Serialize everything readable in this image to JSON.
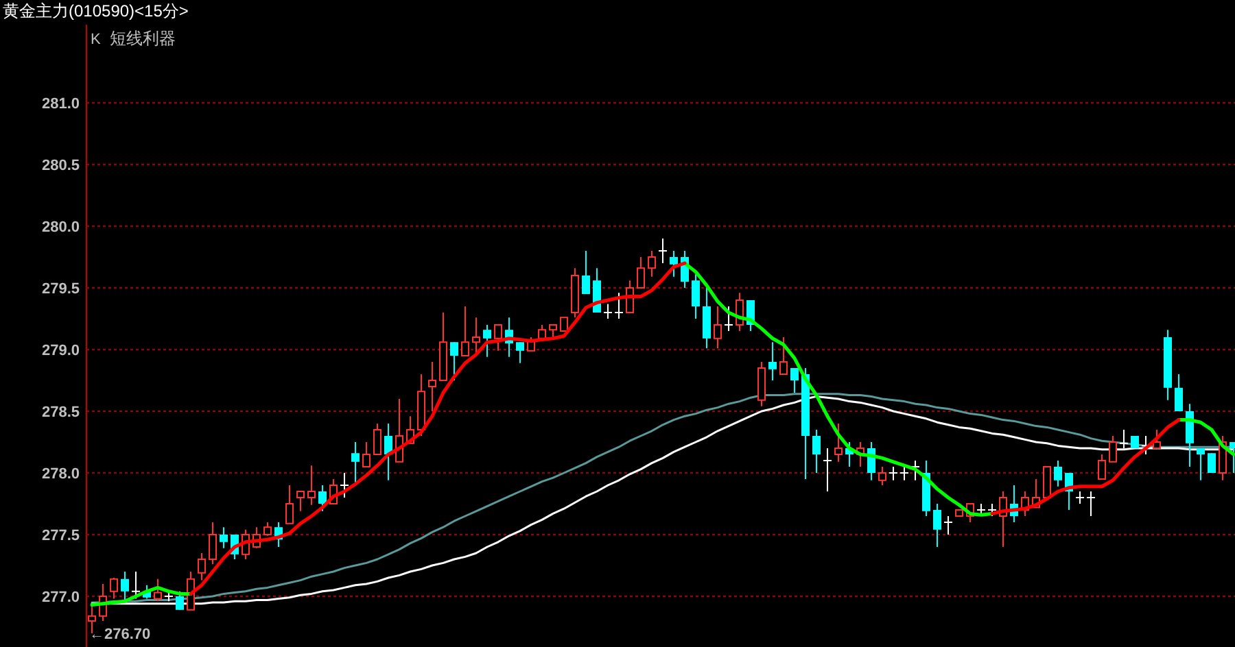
{
  "chart_data": {
    "type": "candlestick",
    "title": "黄金主力(010590)<15分>",
    "subtitle": "短线利器",
    "annotations": [
      "K",
      "←276.70"
    ],
    "categories": [
      null,
      null,
      null,
      null,
      null,
      null,
      null,
      null,
      null,
      null,
      null,
      null,
      null,
      null,
      null,
      null,
      null,
      null,
      null,
      null,
      null,
      null,
      null,
      null,
      null,
      null,
      null,
      null,
      null,
      null,
      null,
      null,
      null,
      null,
      null,
      null,
      null,
      null,
      null,
      null,
      null,
      null,
      null,
      null,
      null,
      null,
      null,
      null,
      null,
      null,
      null,
      null,
      null,
      null,
      null,
      null,
      null,
      null,
      null,
      null,
      null,
      null,
      null,
      null,
      null,
      null,
      null,
      null,
      null,
      null,
      null,
      null,
      null,
      null,
      null,
      null,
      null,
      null,
      null,
      null,
      null,
      null,
      null,
      null,
      null,
      null,
      null,
      null,
      null,
      null,
      null,
      null,
      null,
      null,
      null,
      null,
      null,
      null,
      null,
      null,
      null,
      null,
      null,
      null,
      null
    ],
    "ohlc": [
      [
        276.8,
        276.92,
        276.7,
        276.84
      ],
      [
        276.84,
        277.1,
        276.8,
        277.0
      ],
      [
        277.04,
        277.15,
        276.98,
        277.14
      ],
      [
        277.14,
        277.2,
        276.96,
        277.04
      ],
      [
        277.04,
        277.2,
        276.98,
        277.04
      ],
      [
        277.04,
        277.09,
        276.98,
        276.99
      ],
      [
        276.98,
        277.14,
        276.96,
        277.03
      ],
      [
        277.0,
        277.04,
        276.96,
        277.0
      ],
      [
        277.0,
        277.04,
        276.89,
        276.89
      ],
      [
        276.89,
        277.2,
        276.89,
        277.14
      ],
      [
        277.19,
        277.35,
        277.13,
        277.3
      ],
      [
        277.3,
        277.6,
        277.26,
        277.5
      ],
      [
        277.5,
        277.56,
        277.39,
        277.44
      ],
      [
        277.5,
        277.5,
        277.3,
        277.34
      ],
      [
        277.34,
        277.54,
        277.3,
        277.5
      ],
      [
        277.4,
        277.56,
        277.39,
        277.5
      ],
      [
        277.5,
        277.6,
        277.49,
        277.56
      ],
      [
        277.56,
        277.6,
        277.4,
        277.46
      ],
      [
        277.59,
        277.9,
        277.59,
        277.75
      ],
      [
        277.8,
        277.85,
        277.69,
        277.85
      ],
      [
        277.8,
        278.06,
        277.74,
        277.85
      ],
      [
        277.85,
        277.9,
        277.69,
        277.75
      ],
      [
        277.75,
        277.95,
        277.75,
        277.9
      ],
      [
        277.9,
        278.0,
        277.8,
        277.9
      ],
      [
        278.16,
        278.25,
        277.91,
        278.09
      ],
      [
        278.05,
        278.25,
        278.05,
        278.15
      ],
      [
        278.15,
        278.4,
        278.15,
        278.35
      ],
      [
        278.3,
        278.4,
        277.94,
        278.15
      ],
      [
        278.09,
        278.6,
        278.09,
        278.3
      ],
      [
        278.24,
        278.46,
        278.24,
        278.35
      ],
      [
        278.35,
        278.8,
        278.3,
        278.66
      ],
      [
        278.7,
        278.9,
        278.5,
        278.75
      ],
      [
        278.75,
        279.3,
        278.75,
        279.06
      ],
      [
        279.06,
        279.06,
        278.75,
        278.95
      ],
      [
        278.95,
        279.35,
        278.95,
        279.06
      ],
      [
        279.06,
        279.26,
        278.95,
        279.1
      ],
      [
        279.16,
        279.2,
        278.94,
        279.09
      ],
      [
        279.09,
        279.2,
        278.99,
        279.2
      ],
      [
        279.16,
        279.26,
        278.94,
        279.05
      ],
      [
        279.06,
        279.06,
        278.89,
        278.99
      ],
      [
        278.99,
        279.1,
        278.99,
        279.07
      ],
      [
        279.09,
        279.2,
        279.09,
        279.16
      ],
      [
        279.16,
        279.2,
        279.1,
        279.2
      ],
      [
        279.15,
        279.26,
        279.15,
        279.26
      ],
      [
        279.3,
        279.66,
        279.26,
        279.6
      ],
      [
        279.6,
        279.8,
        279.45,
        279.45
      ],
      [
        279.56,
        279.66,
        279.3,
        279.3
      ],
      [
        279.3,
        279.37,
        279.25,
        279.3
      ],
      [
        279.3,
        279.46,
        279.25,
        279.3
      ],
      [
        279.3,
        279.56,
        279.3,
        279.5
      ],
      [
        279.5,
        279.75,
        279.5,
        279.66
      ],
      [
        279.66,
        279.8,
        279.59,
        279.75
      ],
      [
        279.8,
        279.9,
        279.7,
        279.8
      ],
      [
        279.75,
        279.8,
        279.59,
        279.69
      ],
      [
        279.75,
        279.8,
        279.5,
        279.55
      ],
      [
        279.56,
        279.61,
        279.25,
        279.35
      ],
      [
        279.35,
        279.5,
        279.01,
        279.09
      ],
      [
        279.09,
        279.35,
        279.01,
        279.2
      ],
      [
        279.2,
        279.35,
        279.15,
        279.2
      ],
      [
        279.2,
        279.46,
        279.15,
        279.4
      ],
      [
        279.4,
        279.4,
        279.15,
        279.2
      ],
      [
        278.59,
        278.9,
        278.54,
        278.85
      ],
      [
        278.9,
        279.06,
        278.75,
        278.84
      ],
      [
        278.8,
        279.1,
        278.8,
        278.9
      ],
      [
        278.85,
        278.85,
        278.65,
        278.75
      ],
      [
        278.8,
        278.85,
        277.95,
        278.3
      ],
      [
        278.3,
        278.35,
        278.0,
        278.15
      ],
      [
        278.1,
        278.2,
        277.85,
        278.1
      ],
      [
        278.15,
        278.4,
        278.09,
        278.2
      ],
      [
        278.2,
        278.25,
        278.05,
        278.15
      ],
      [
        278.15,
        278.25,
        278.05,
        278.2
      ],
      [
        278.2,
        278.25,
        277.94,
        278.0
      ],
      [
        277.94,
        278.05,
        277.9,
        278.0
      ],
      [
        278.0,
        278.05,
        277.94,
        278.0
      ],
      [
        278.0,
        278.05,
        277.94,
        278.0
      ],
      [
        278.05,
        278.1,
        277.94,
        278.05
      ],
      [
        278.0,
        278.1,
        277.65,
        277.69
      ],
      [
        277.7,
        277.75,
        277.4,
        277.54
      ],
      [
        277.6,
        277.65,
        277.5,
        277.6
      ],
      [
        277.65,
        277.7,
        277.65,
        277.7
      ],
      [
        277.65,
        277.75,
        277.6,
        277.75
      ],
      [
        277.7,
        277.75,
        277.65,
        277.7
      ],
      [
        277.7,
        277.75,
        277.65,
        277.7
      ],
      [
        277.65,
        277.85,
        277.4,
        277.8
      ],
      [
        277.75,
        277.9,
        277.6,
        277.65
      ],
      [
        277.7,
        277.85,
        277.65,
        277.8
      ],
      [
        277.72,
        277.95,
        277.72,
        277.8
      ],
      [
        277.8,
        278.05,
        277.8,
        278.05
      ],
      [
        278.05,
        278.1,
        277.89,
        277.94
      ],
      [
        278.0,
        278.0,
        277.7,
        277.85
      ],
      [
        277.8,
        277.85,
        277.75,
        277.8
      ],
      [
        277.8,
        277.85,
        277.65,
        277.8
      ],
      [
        277.95,
        278.15,
        277.95,
        278.1
      ],
      [
        278.09,
        278.3,
        278.09,
        278.25
      ],
      [
        278.24,
        278.35,
        278.2,
        278.24
      ],
      [
        278.3,
        278.3,
        278.2,
        278.2
      ],
      [
        278.22,
        278.3,
        278.15,
        278.22
      ],
      [
        278.2,
        278.35,
        278.2,
        278.25
      ],
      [
        279.1,
        279.16,
        278.59,
        278.69
      ],
      [
        278.69,
        278.8,
        278.5,
        278.5
      ],
      [
        278.5,
        278.56,
        278.05,
        278.24
      ],
      [
        278.2,
        278.2,
        277.94,
        278.15
      ],
      [
        278.16,
        278.16,
        278.0,
        278.0
      ],
      [
        278.0,
        278.3,
        277.94,
        278.25
      ],
      [
        278.25,
        278.25,
        278.0,
        278.2
      ]
    ],
    "series": [
      {
        "type": "line",
        "color": "#5a9a9a",
        "values": [
          276.95,
          276.95,
          276.96,
          276.96,
          276.96,
          276.97,
          276.97,
          276.97,
          276.98,
          276.98,
          276.99,
          277.0,
          277.02,
          277.03,
          277.04,
          277.06,
          277.07,
          277.09,
          277.11,
          277.13,
          277.16,
          277.18,
          277.2,
          277.23,
          277.25,
          277.27,
          277.3,
          277.34,
          277.38,
          277.43,
          277.47,
          277.52,
          277.56,
          277.61,
          277.65,
          277.69,
          277.73,
          277.77,
          277.81,
          277.85,
          277.89,
          277.93,
          277.96,
          278.0,
          278.04,
          278.08,
          278.13,
          278.17,
          278.21,
          278.26,
          278.3,
          278.34,
          278.39,
          278.43,
          278.46,
          278.48,
          278.51,
          278.53,
          278.56,
          278.58,
          278.61,
          278.63,
          278.63,
          278.63,
          278.64,
          278.64,
          278.64,
          278.64,
          278.64,
          278.63,
          278.63,
          278.62,
          278.6,
          278.59,
          278.58,
          278.56,
          278.55,
          278.53,
          278.52,
          278.5,
          278.48,
          278.47,
          278.45,
          278.43,
          278.42,
          278.4,
          278.38,
          278.37,
          278.35,
          278.33,
          278.31,
          278.28,
          278.26,
          278.25,
          278.24,
          278.23,
          278.22,
          278.21,
          278.21,
          278.21,
          278.21,
          278.21,
          278.21,
          278.21,
          278.21
        ]
      },
      {
        "type": "line",
        "color": "#ffffff",
        "values": [
          276.94,
          276.94,
          276.94,
          276.94,
          276.94,
          276.94,
          276.94,
          276.94,
          276.94,
          276.94,
          276.94,
          276.95,
          276.95,
          276.96,
          276.96,
          276.97,
          276.97,
          276.98,
          276.99,
          277.01,
          277.02,
          277.04,
          277.05,
          277.07,
          277.09,
          277.1,
          277.12,
          277.15,
          277.17,
          277.2,
          277.22,
          277.25,
          277.27,
          277.3,
          277.32,
          277.35,
          277.4,
          277.44,
          277.49,
          277.53,
          277.58,
          277.62,
          277.67,
          277.71,
          277.76,
          277.81,
          277.85,
          277.9,
          277.94,
          277.99,
          278.03,
          278.08,
          278.12,
          278.17,
          278.21,
          278.25,
          278.29,
          278.34,
          278.38,
          278.42,
          278.46,
          278.5,
          278.52,
          278.55,
          278.57,
          278.6,
          278.62,
          278.61,
          278.6,
          278.58,
          278.57,
          278.55,
          278.53,
          278.5,
          278.48,
          278.46,
          278.44,
          278.41,
          278.39,
          278.37,
          278.36,
          278.34,
          278.32,
          278.31,
          278.29,
          278.27,
          278.25,
          278.24,
          278.22,
          278.21,
          278.2,
          278.2,
          278.19,
          278.19,
          278.19,
          278.2,
          278.2,
          278.2,
          278.2,
          278.2,
          278.19,
          278.19,
          278.19,
          278.19,
          278.19
        ]
      },
      {
        "type": "line",
        "color": "#00ff00",
        "values": [
          276.93,
          276.94,
          276.95,
          276.96,
          277.0,
          277.04,
          277.07,
          277.04,
          277.02,
          277.02,
          null,
          null,
          null,
          null,
          null,
          null,
          null,
          null,
          null,
          null,
          null,
          null,
          null,
          null,
          null,
          null,
          null,
          null,
          null,
          null,
          null,
          null,
          null,
          null,
          null,
          null,
          null,
          null,
          null,
          null,
          null,
          null,
          null,
          null,
          null,
          null,
          null,
          null,
          null,
          null,
          null,
          null,
          null,
          null,
          279.7,
          279.63,
          279.52,
          279.39,
          279.3,
          279.26,
          279.24,
          279.17,
          279.09,
          279.04,
          278.93,
          278.76,
          278.63,
          278.46,
          278.31,
          278.2,
          278.15,
          278.14,
          278.12,
          278.09,
          278.06,
          278.03,
          277.96,
          277.87,
          277.8,
          277.74,
          277.67,
          277.66,
          277.67,
          null,
          null,
          null,
          null,
          null,
          null,
          null,
          null,
          null,
          null,
          null,
          null,
          null,
          null,
          null,
          null,
          278.43,
          278.43,
          278.41,
          278.35,
          278.22,
          278.15
        ]
      },
      {
        "type": "line",
        "color": "#ff0000",
        "values": [
          null,
          null,
          null,
          null,
          null,
          null,
          null,
          null,
          null,
          277.02,
          277.09,
          277.2,
          277.31,
          277.4,
          277.44,
          277.45,
          277.46,
          277.48,
          277.51,
          277.59,
          277.65,
          277.72,
          277.81,
          277.85,
          277.91,
          277.98,
          278.06,
          278.15,
          278.2,
          278.26,
          278.33,
          278.46,
          278.65,
          278.78,
          278.89,
          278.96,
          279.06,
          279.07,
          279.09,
          279.08,
          279.07,
          279.08,
          279.09,
          279.11,
          279.22,
          279.34,
          279.38,
          279.4,
          279.42,
          279.43,
          279.43,
          279.48,
          279.57,
          279.67,
          279.7,
          null,
          null,
          null,
          null,
          null,
          null,
          null,
          null,
          null,
          null,
          null,
          null,
          null,
          null,
          null,
          null,
          null,
          null,
          null,
          null,
          null,
          null,
          null,
          null,
          null,
          null,
          null,
          277.67,
          277.69,
          277.7,
          277.71,
          277.74,
          277.79,
          277.85,
          277.88,
          277.89,
          277.89,
          277.89,
          277.94,
          278.04,
          278.13,
          278.2,
          278.28,
          278.37,
          278.43,
          null,
          null,
          null,
          null,
          null
        ]
      }
    ],
    "ylim": [
      276.6,
      281.6
    ],
    "yticks": [
      {
        "value": 277,
        "label": "277.0"
      },
      277.5,
      {
        "value": 278,
        "label": "278.0"
      },
      278.5,
      {
        "value": 279,
        "label": "279.0"
      },
      279.5,
      {
        "value": 280,
        "label": "280.0"
      },
      280.5,
      {
        "value": 281,
        "label": "281.0"
      }
    ],
    "grid": "y",
    "tick_labels": "y"
  }
}
